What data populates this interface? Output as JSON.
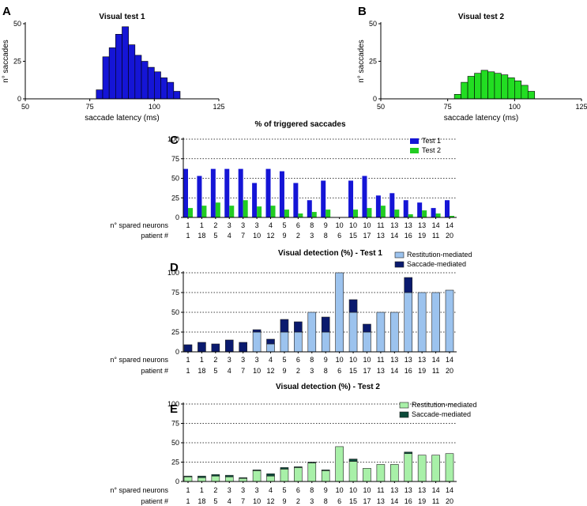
{
  "chart_data": [
    {
      "panel": "A",
      "type": "bar",
      "title": "Visual test 1",
      "xlabel": "saccade latency (ms)",
      "ylabel": "n° saccades",
      "xlim": [
        50,
        125
      ],
      "ylim": [
        0,
        50
      ],
      "xticks": [
        "50",
        "75",
        "100",
        "125"
      ],
      "yticks": [
        "0",
        "25",
        "50"
      ],
      "bin_start": 77.5,
      "bin_width": 2.5,
      "values": [
        6,
        28,
        34,
        43,
        48,
        36,
        29,
        25,
        21,
        18,
        14,
        11,
        5
      ],
      "color": "#1515d6"
    },
    {
      "panel": "B",
      "type": "bar",
      "title": "Visual test 2",
      "xlabel": "saccade latency (ms)",
      "ylabel": "n° saccades",
      "xlim": [
        50,
        125
      ],
      "ylim": [
        0,
        50
      ],
      "xticks": [
        "50",
        "75",
        "100",
        "125"
      ],
      "yticks": [
        "0",
        "25",
        "50"
      ],
      "bin_start": 77.5,
      "bin_width": 2.5,
      "values": [
        3,
        11,
        15,
        17,
        19,
        18,
        17,
        16,
        14,
        12,
        9,
        5
      ],
      "color": "#22dd22"
    },
    {
      "panel": "C",
      "type": "bar",
      "title": "% of triggered saccades",
      "xlabel": "",
      "ylabel": "",
      "ylim": [
        0,
        100
      ],
      "yticks": [
        "0",
        "25",
        "50",
        "75",
        "100"
      ],
      "row_labels": [
        "n° spared neurons",
        "patient #"
      ],
      "categories": [
        "1",
        "1",
        "2",
        "3",
        "3",
        "3",
        "4",
        "5",
        "6",
        "8",
        "9",
        "10",
        "10",
        "10",
        "11",
        "13",
        "13",
        "13",
        "14",
        "14"
      ],
      "patients": [
        "1",
        "18",
        "5",
        "4",
        "7",
        "10",
        "12",
        "9",
        "2",
        "3",
        "8",
        "6",
        "15",
        "17",
        "13",
        "14",
        "16",
        "19",
        "11",
        "20"
      ],
      "legend": [
        "Test 1",
        "Test 2"
      ],
      "colors": [
        "#1515d6",
        "#22cc22"
      ],
      "series": [
        {
          "name": "Test 1",
          "values": [
            62,
            53,
            62,
            62,
            62,
            44,
            62,
            59,
            44,
            22,
            47,
            0,
            47,
            53,
            28,
            31,
            22,
            19,
            12,
            22
          ]
        },
        {
          "name": "Test 2",
          "values": [
            12,
            15,
            19,
            15,
            22,
            14,
            15,
            10,
            5,
            7,
            10,
            0,
            10,
            12,
            15,
            10,
            4,
            9,
            5,
            2
          ]
        }
      ]
    },
    {
      "panel": "D",
      "type": "bar",
      "title": "Visual detection (%) - Test 1",
      "xlabel": "",
      "ylabel": "",
      "ylim": [
        0,
        100
      ],
      "yticks": [
        "0",
        "25",
        "50",
        "75",
        "100"
      ],
      "row_labels": [
        "n° spared neurons",
        "patient #"
      ],
      "categories": [
        "1",
        "1",
        "2",
        "3",
        "3",
        "3",
        "4",
        "5",
        "6",
        "8",
        "9",
        "10",
        "10",
        "10",
        "11",
        "13",
        "13",
        "13",
        "14",
        "14"
      ],
      "patients": [
        "1",
        "18",
        "5",
        "4",
        "7",
        "10",
        "12",
        "9",
        "2",
        "3",
        "8",
        "6",
        "15",
        "17",
        "13",
        "14",
        "16",
        "19",
        "11",
        "20"
      ],
      "legend": [
        "Restitution-mediated",
        "Saccade-mediated"
      ],
      "colors": [
        "#9cc3ee",
        "#0a1a6e"
      ],
      "series": [
        {
          "name": "Restitution-mediated",
          "values": [
            0,
            0,
            0,
            0,
            0,
            25,
            10,
            25,
            25,
            50,
            25,
            100,
            50,
            25,
            50,
            50,
            75,
            75,
            75,
            78
          ]
        },
        {
          "name": "Saccade-mediated",
          "values": [
            9,
            12,
            10,
            15,
            12,
            3,
            6,
            16,
            13,
            0,
            19,
            0,
            16,
            10,
            0,
            0,
            19,
            0,
            0,
            0
          ]
        }
      ]
    },
    {
      "panel": "E",
      "type": "bar",
      "title": "Visual detection (%) - Test 2",
      "xlabel": "",
      "ylabel": "",
      "ylim": [
        0,
        100
      ],
      "yticks": [
        "0",
        "25",
        "50",
        "75",
        "100"
      ],
      "row_labels": [
        "n° spared neurons",
        "patient #"
      ],
      "categories": [
        "1",
        "1",
        "2",
        "3",
        "3",
        "3",
        "4",
        "5",
        "6",
        "8",
        "9",
        "10",
        "10",
        "10",
        "11",
        "13",
        "13",
        "13",
        "14",
        "14"
      ],
      "patients": [
        "1",
        "18",
        "5",
        "4",
        "7",
        "10",
        "12",
        "9",
        "2",
        "3",
        "8",
        "6",
        "15",
        "17",
        "13",
        "14",
        "16",
        "19",
        "11",
        "20"
      ],
      "legend": [
        "Restitution-mediated",
        "Saccade-mediated"
      ],
      "colors": [
        "#a8f0a8",
        "#0c4a3a"
      ],
      "series": [
        {
          "name": "Restitution-mediated",
          "values": [
            6,
            5,
            7,
            6,
            4,
            14,
            7,
            16,
            18,
            24,
            14,
            45,
            26,
            17,
            22,
            22,
            36,
            34,
            34,
            36
          ]
        },
        {
          "name": "Saccade-mediated",
          "values": [
            1,
            2,
            2,
            2,
            1,
            1,
            3,
            2,
            1,
            1,
            1,
            0,
            3,
            0,
            0,
            0,
            2,
            0,
            0,
            0
          ]
        }
      ]
    }
  ]
}
